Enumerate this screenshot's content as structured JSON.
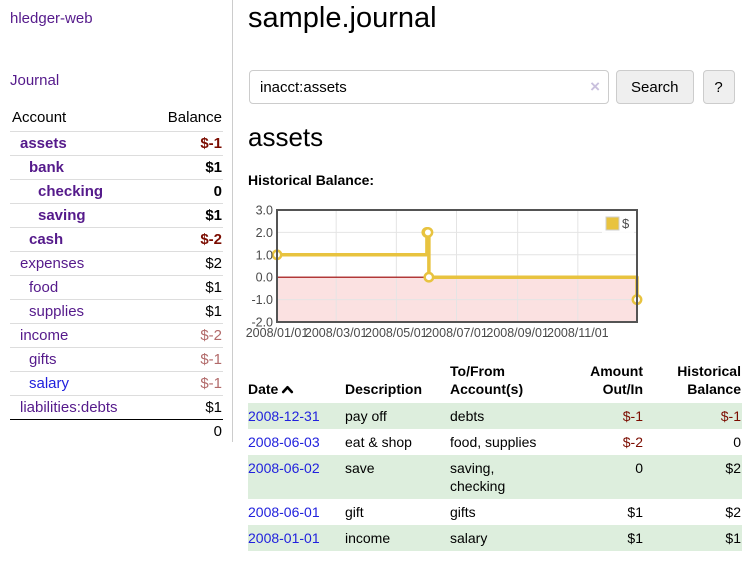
{
  "colors": {
    "visited_link": "#551a8b",
    "link": "#2121dd",
    "negative_strong": "#7b0c00",
    "negative_faint": "#b26a6a",
    "row_green": "#ddeedd",
    "chart_line": "#e8c33f",
    "chart_marker_fill": "#ffffff",
    "chart_negative_fill": "#fbe1e1",
    "chart_zero_line": "#990000",
    "chart_border": "#545454",
    "chart_grid": "#e4e4e4",
    "chart_text": "#4a4a4a"
  },
  "sidebar": {
    "app_title": "hledger-web",
    "journal_label": "Journal",
    "accounts_table": {
      "header_account": "Account",
      "header_balance": "Balance",
      "rows": [
        {
          "name": "assets",
          "depth": 1,
          "bold": true,
          "balance": "$-1",
          "balance_style": "neg-strong"
        },
        {
          "name": "bank",
          "depth": 2,
          "bold": true,
          "balance": "$1",
          "balance_style": "strong"
        },
        {
          "name": "checking",
          "depth": 3,
          "bold": true,
          "balance": "0",
          "balance_style": "strong"
        },
        {
          "name": "saving",
          "depth": 3,
          "bold": true,
          "balance": "$1",
          "balance_style": "strong"
        },
        {
          "name": "cash",
          "depth": 2,
          "bold": true,
          "balance": "$-2",
          "balance_style": "neg-strong"
        },
        {
          "name": "expenses",
          "depth": 1,
          "bold": false,
          "balance": "$2",
          "balance_style": "plain"
        },
        {
          "name": "food",
          "depth": 2,
          "bold": false,
          "balance": "$1",
          "balance_style": "plain"
        },
        {
          "name": "supplies",
          "depth": 2,
          "bold": false,
          "balance": "$1",
          "balance_style": "plain"
        },
        {
          "name": "income",
          "depth": 1,
          "bold": false,
          "balance": "$-2",
          "balance_style": "neg-faint"
        },
        {
          "name": "gifts",
          "depth": 2,
          "bold": false,
          "balance": "$-1",
          "balance_style": "neg-faint"
        },
        {
          "name": "salary",
          "depth": 2,
          "bold": false,
          "link_style": "unvisited",
          "balance": "$-1",
          "balance_style": "neg-faint"
        },
        {
          "name": "liabilities:debts",
          "depth": 1,
          "bold": false,
          "balance": "$1",
          "balance_style": "plain"
        }
      ],
      "total": "0"
    }
  },
  "header": {
    "title": "sample.journal"
  },
  "search": {
    "value": "inacct:assets",
    "clear_icon": "×",
    "button_label": "Search",
    "help_label": "?"
  },
  "main": {
    "account_heading": "assets",
    "chart_label": "Historical Balance:"
  },
  "chart_data": {
    "type": "line",
    "step": true,
    "title": "Historical Balance",
    "series": [
      {
        "name": "$",
        "points": [
          [
            "2008-01-01",
            1
          ],
          [
            "2008-06-01",
            2
          ],
          [
            "2008-06-02",
            2
          ],
          [
            "2008-06-03",
            0
          ],
          [
            "2008-12-31",
            -1
          ]
        ]
      }
    ],
    "ylim": [
      -2,
      3
    ],
    "yticks": [
      3.0,
      2.0,
      1.0,
      0.0,
      -1.0,
      -2.0
    ],
    "xrange": [
      "2008-01-01",
      "2008-12-31"
    ],
    "xticks": [
      "2008/01/01",
      "2008/03/01",
      "2008/05/01",
      "2008/07/01",
      "2008/09/01",
      "2008/11/01"
    ],
    "grid": true,
    "negative_region_shaded": true,
    "legend": {
      "position": "top-right",
      "label": "$"
    }
  },
  "register": {
    "headers": {
      "date": "Date",
      "description": "Description",
      "accounts": "To/From Account(s)",
      "amount": "Amount Out/In",
      "balance": "Historical Balance"
    },
    "rows": [
      {
        "date": "2008-12-31",
        "description": "pay off",
        "accounts_lines": [
          "debts"
        ],
        "amount": "$-1",
        "amount_neg": true,
        "balance": "$-1",
        "balance_neg": true
      },
      {
        "date": "2008-06-03",
        "description": "eat & shop",
        "accounts_lines": [
          "food, supplies"
        ],
        "amount": "$-2",
        "amount_neg": true,
        "balance": "0",
        "balance_neg": false
      },
      {
        "date": "2008-06-02",
        "description": "save",
        "accounts_lines": [
          "saving,",
          "checking"
        ],
        "amount": "0",
        "amount_neg": false,
        "balance": "$2",
        "balance_neg": false
      },
      {
        "date": "2008-06-01",
        "description": "gift",
        "accounts_lines": [
          "gifts"
        ],
        "amount": "$1",
        "amount_neg": false,
        "balance": "$2",
        "balance_neg": false
      },
      {
        "date": "2008-01-01",
        "description": "income",
        "accounts_lines": [
          "salary"
        ],
        "amount": "$1",
        "amount_neg": false,
        "balance": "$1",
        "balance_neg": false
      }
    ]
  }
}
